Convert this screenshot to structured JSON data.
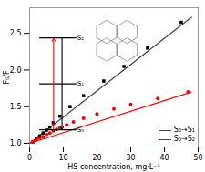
{
  "chart_data": {
    "type": "scatter",
    "xlabel": "HS concentration, mg·L⁻¹",
    "ylabel": "F₀/F",
    "series": [
      {
        "name": "S₀→S₁",
        "type": "line",
        "color": "#444444",
        "x": [
          0,
          48
        ],
        "values": [
          1.0,
          2.72
        ]
      },
      {
        "name": "S₀→S₂",
        "type": "line",
        "color": "red",
        "x": [
          0,
          48
        ],
        "values": [
          1.0,
          1.7
        ]
      },
      {
        "type": "scatter",
        "marker": "square",
        "color": "black",
        "x": [
          1,
          2,
          3,
          4,
          5,
          6,
          7,
          9,
          12,
          16,
          22,
          28,
          35,
          45
        ],
        "values": [
          1.02,
          1.06,
          1.1,
          1.14,
          1.18,
          1.22,
          1.28,
          1.37,
          1.5,
          1.65,
          1.85,
          2.05,
          2.3,
          2.65
        ]
      },
      {
        "type": "scatter",
        "marker": "circle",
        "color": "red",
        "x": [
          1,
          2,
          3,
          4,
          5,
          6,
          7,
          8,
          9,
          11,
          13,
          16,
          20,
          25,
          30,
          38,
          47
        ],
        "values": [
          1.02,
          1.05,
          1.07,
          1.09,
          1.12,
          1.14,
          1.17,
          1.19,
          1.21,
          1.25,
          1.29,
          1.34,
          1.4,
          1.47,
          1.53,
          1.61,
          1.7
        ]
      }
    ],
    "xlim": [
      0,
      50
    ],
    "xticks": [
      0,
      10,
      20,
      30,
      40,
      50
    ],
    "ylim": [
      0.95,
      2.85
    ],
    "yticks": [
      {
        "value": 1,
        "label": "1.0"
      },
      1.5,
      {
        "value": 2,
        "label": "2.0"
      },
      2.5
    ],
    "annotations": [
      "S₂",
      "S₁",
      "S₀"
    ],
    "legend": "lower right",
    "grid": false
  }
}
